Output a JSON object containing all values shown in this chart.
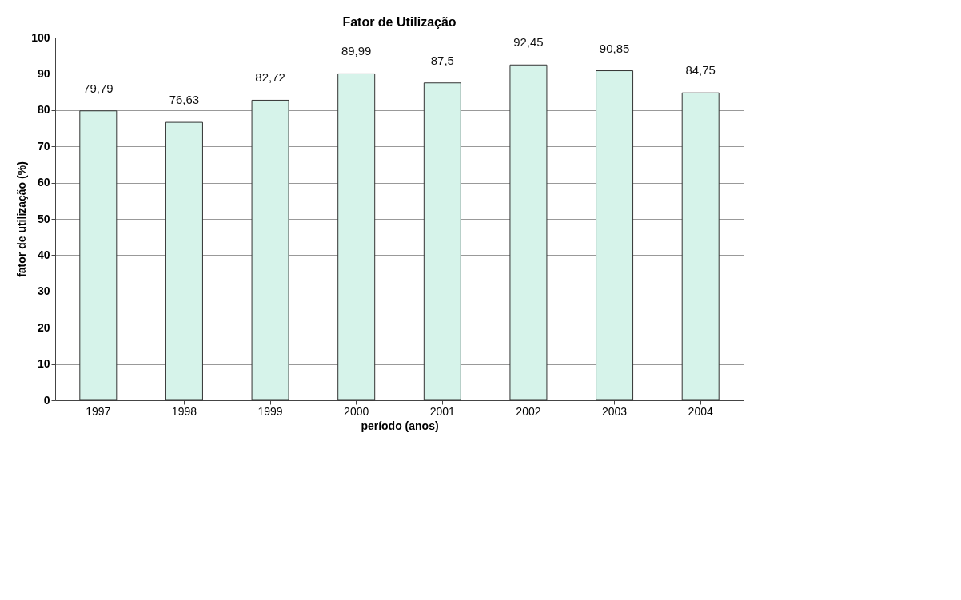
{
  "chart_data": {
    "type": "bar",
    "title": "Fator de Utilização",
    "xlabel": "período (anos)",
    "ylabel": "fator de utilização (%)",
    "categories": [
      "1997",
      "1998",
      "1999",
      "2000",
      "2001",
      "2002",
      "2003",
      "2004"
    ],
    "values": [
      79.79,
      76.63,
      82.72,
      89.99,
      87.5,
      92.45,
      90.85,
      84.75
    ],
    "value_labels": [
      "79,79",
      "76,63",
      "82,72",
      "89,99",
      "87,5",
      "92,45",
      "90,85",
      "84,75"
    ],
    "color": "#d6f3ea",
    "ylim": [
      0,
      100
    ],
    "yticks": [
      0,
      10,
      20,
      30,
      40,
      50,
      60,
      70,
      80,
      90,
      100
    ],
    "grid": "y"
  }
}
